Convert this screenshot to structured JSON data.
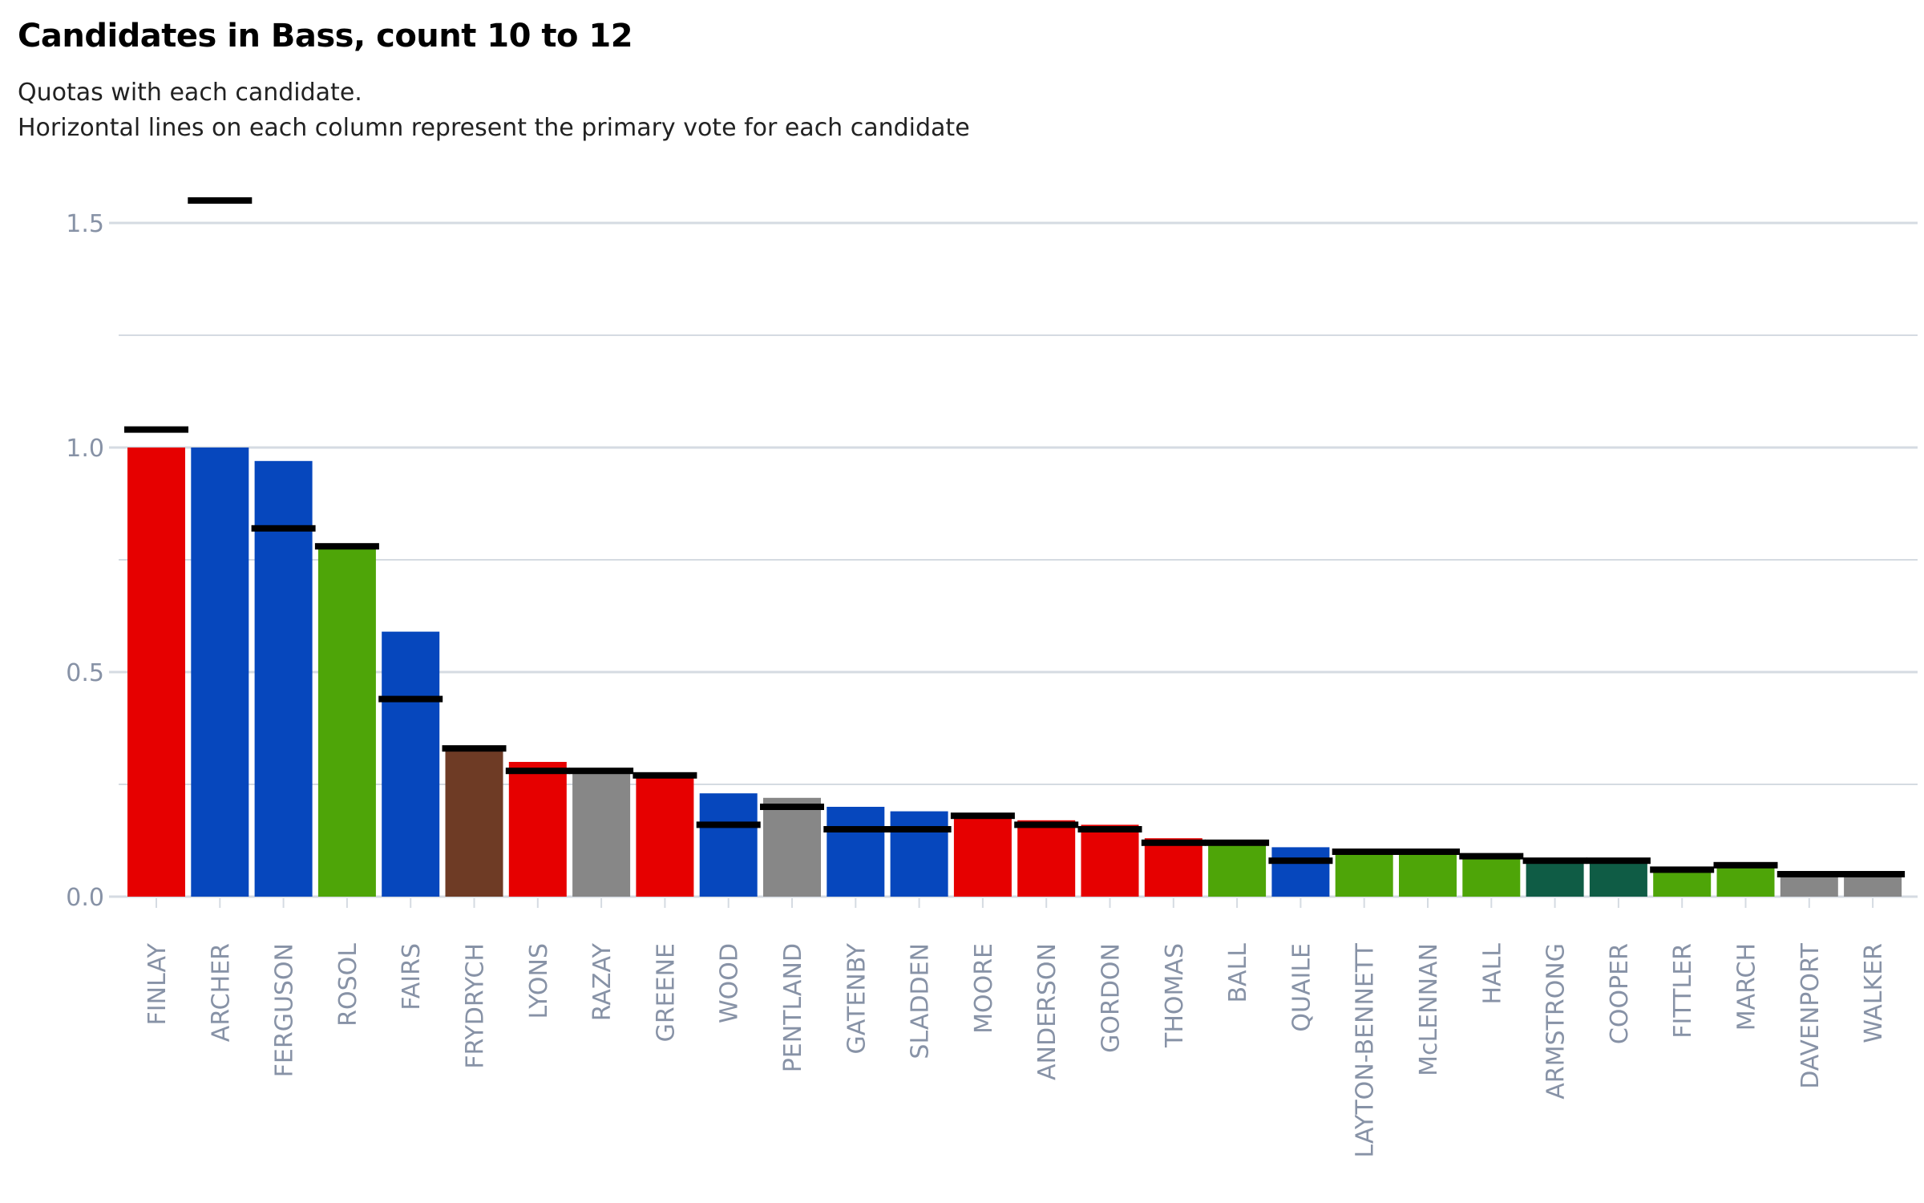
{
  "header": {
    "title": "Candidates in Bass, count 10 to 12",
    "subtitle_line1": "Quotas with each candidate.",
    "subtitle_line2": "Horizontal lines on each column represent the primary vote for each candidate"
  },
  "colors": {
    "labor": "#e60000",
    "liberal": "#0647bd",
    "greens": "#4ea508",
    "independent": "#878787",
    "dark_green": "#0f5c45",
    "brown": "#6e3b25",
    "primary_marker": "#000000",
    "gridline": "#d5dbe2",
    "axis_text": "#8792a6"
  },
  "chart_data": {
    "type": "bar",
    "title": "Candidates in Bass, count 10 to 12",
    "subtitle": "Quotas with each candidate. Horizontal lines on each column represent the primary vote for each candidate",
    "xlabel": "",
    "ylabel": "",
    "ylim": [
      0,
      1.6
    ],
    "yticks": [
      {
        "value": 0.0,
        "label": "0.0"
      },
      {
        "value": 0.5,
        "label": "0.5"
      },
      {
        "value": 1.0,
        "label": "1.0"
      },
      {
        "value": 1.5,
        "label": "1.5"
      }
    ],
    "minor_gridlines": [
      0.25,
      0.75,
      1.25
    ],
    "grid": true,
    "categories": [
      "FINLAY",
      "ARCHER",
      "FERGUSON",
      "ROSOL",
      "FAIRS",
      "FRYDRYCH",
      "LYONS",
      "RAZAY",
      "GREENE",
      "WOOD",
      "PENTLAND",
      "GATENBY",
      "SLADDEN",
      "MOORE",
      "ANDERSON",
      "GORDON",
      "THOMAS",
      "BALL",
      "QUAILE",
      "LAYTON-BENNETT",
      "McLENNAN",
      "HALL",
      "ARMSTRONG",
      "COOPER",
      "FITTLER",
      "MARCH",
      "DAVENPORT",
      "WALKER"
    ],
    "series": [
      {
        "values": [
          1.0,
          1.0,
          0.97,
          0.78,
          0.59,
          0.33,
          0.3,
          0.28,
          0.27,
          0.23,
          0.22,
          0.2,
          0.19,
          0.18,
          0.17,
          0.16,
          0.13,
          0.12,
          0.11,
          0.1,
          0.1,
          0.09,
          0.08,
          0.08,
          0.06,
          0.07,
          0.05,
          0.05
        ],
        "colors": [
          "labor",
          "liberal",
          "liberal",
          "greens",
          "liberal",
          "brown",
          "labor",
          "independent",
          "labor",
          "liberal",
          "independent",
          "liberal",
          "liberal",
          "labor",
          "labor",
          "labor",
          "labor",
          "greens",
          "liberal",
          "greens",
          "greens",
          "greens",
          "dark_green",
          "dark_green",
          "greens",
          "greens",
          "independent",
          "independent"
        ]
      },
      {
        "values": [
          1.04,
          1.55,
          0.82,
          0.78,
          0.44,
          0.33,
          0.28,
          0.28,
          0.27,
          0.16,
          0.2,
          0.15,
          0.15,
          0.18,
          0.16,
          0.15,
          0.12,
          0.12,
          0.08,
          0.1,
          0.1,
          0.09,
          0.08,
          0.08,
          0.06,
          0.07,
          0.05,
          0.05
        ]
      }
    ]
  }
}
